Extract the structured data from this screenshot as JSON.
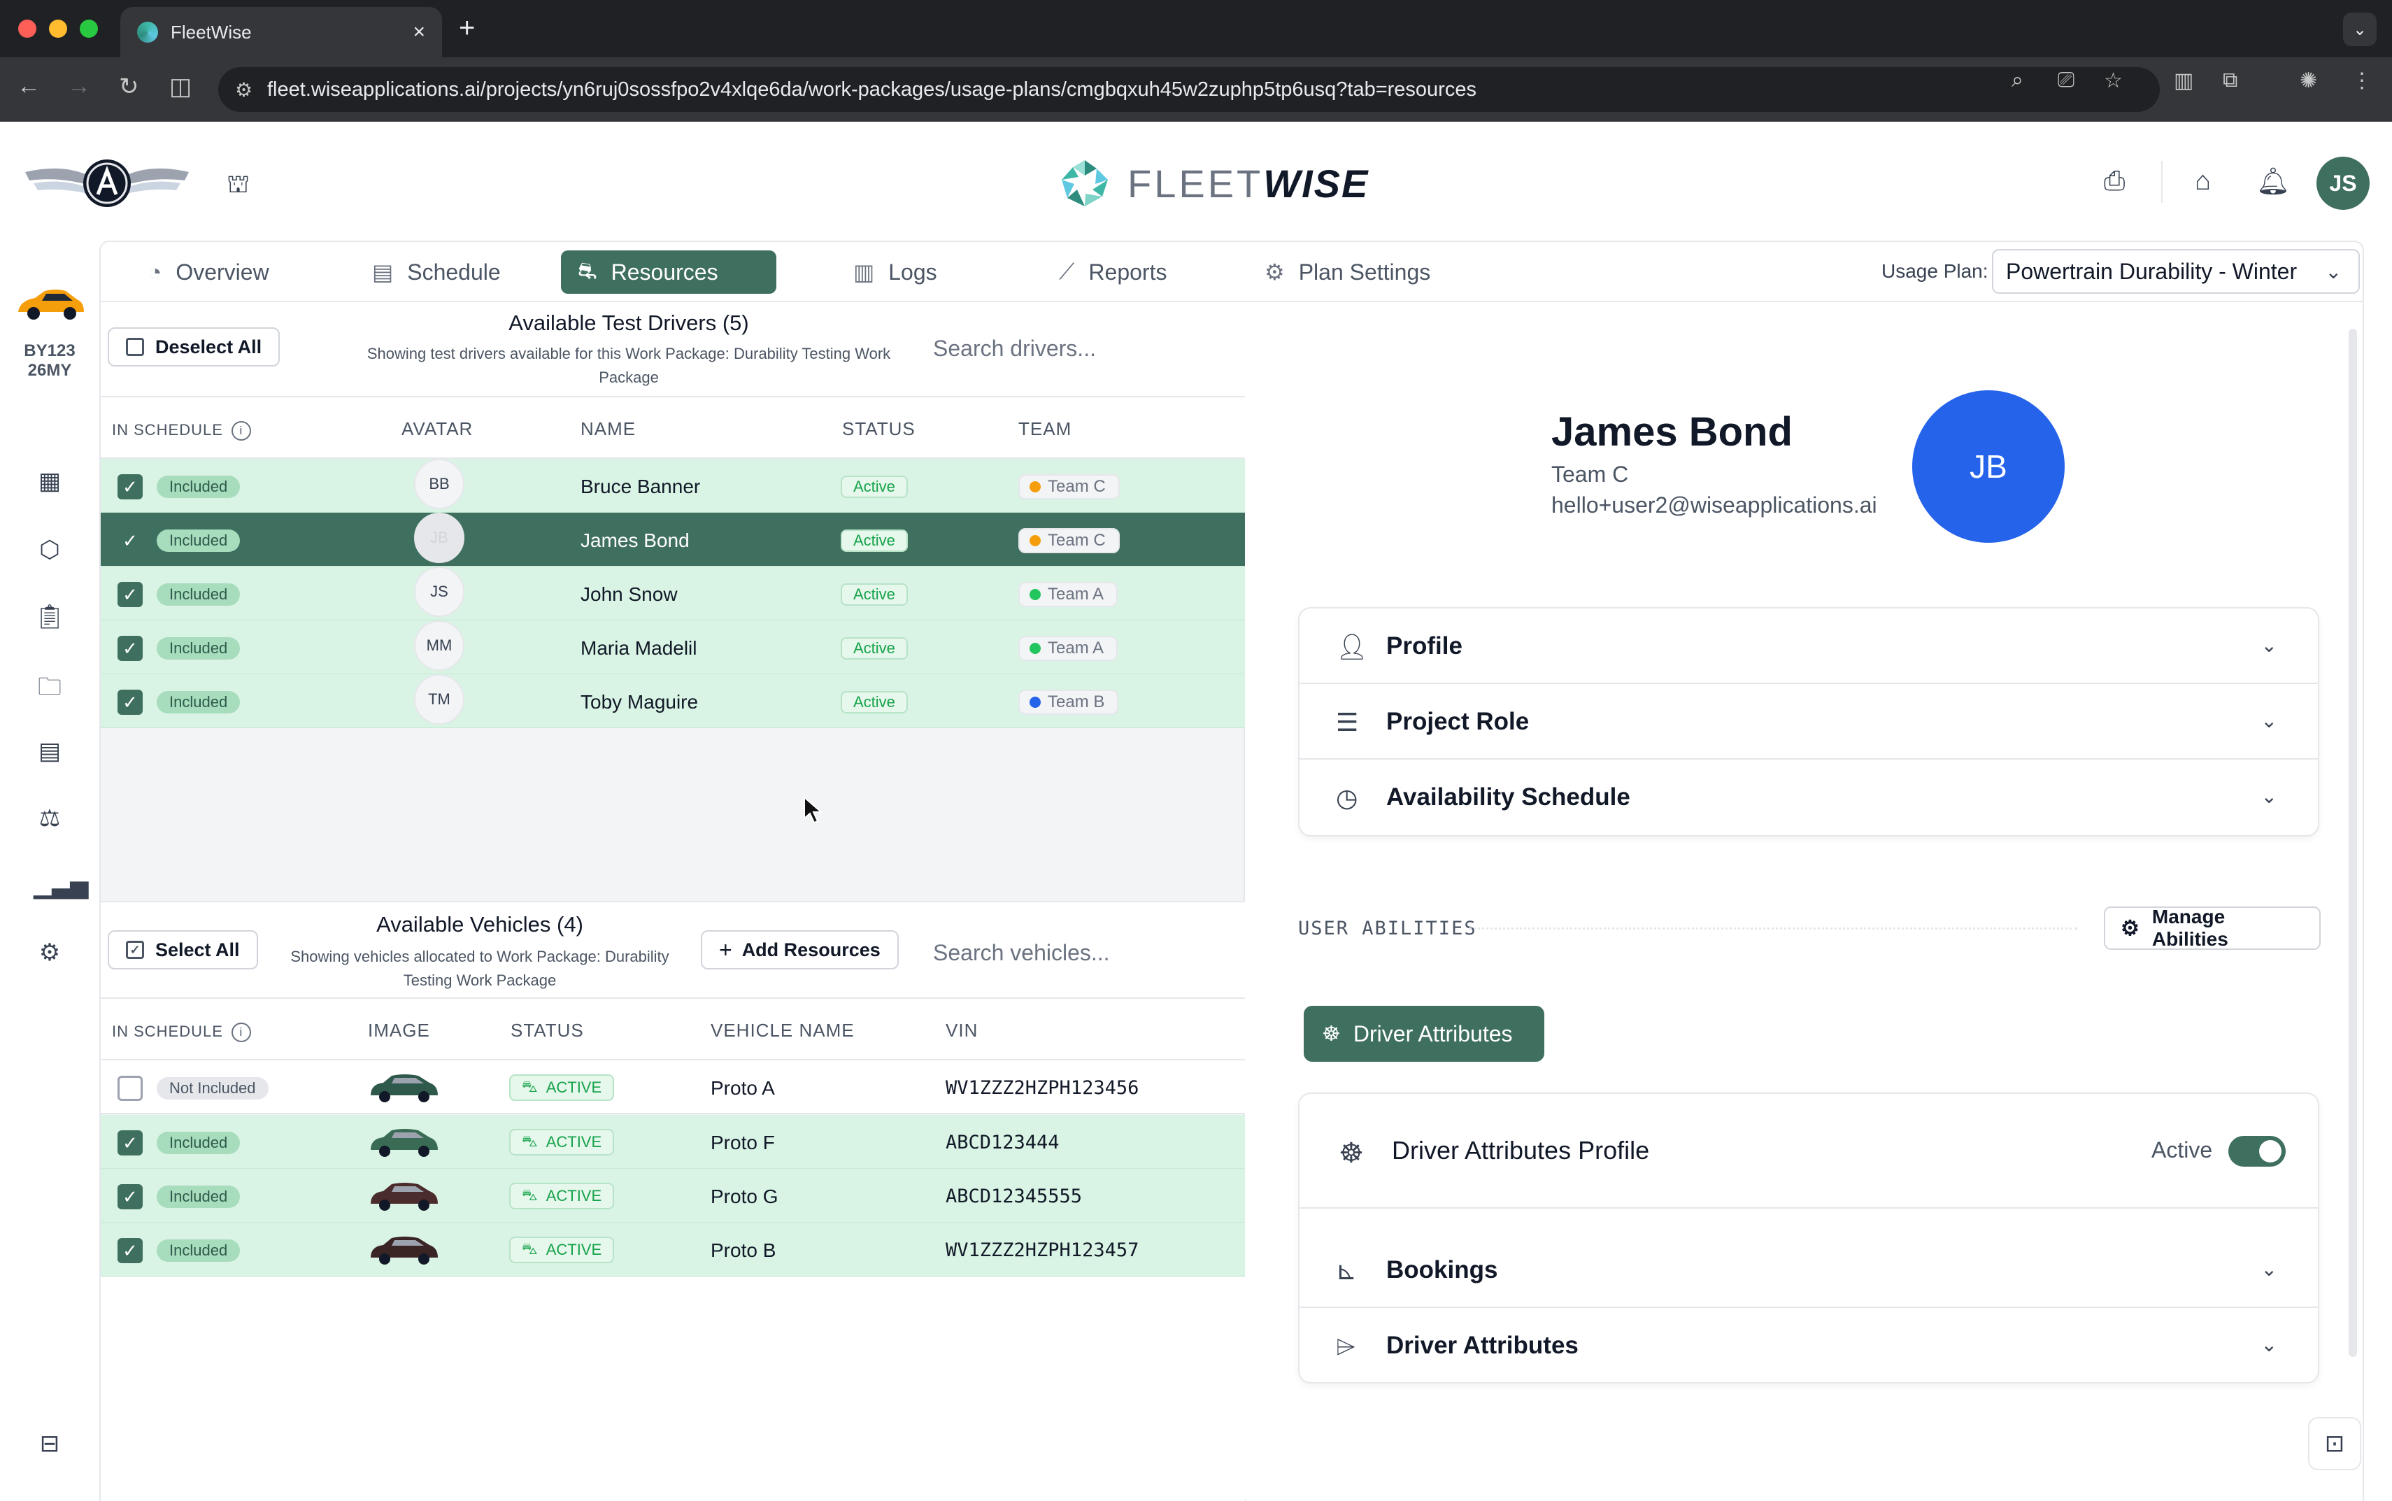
{
  "browser": {
    "tab_title": "FleetWise",
    "close_glyph": "×",
    "new_tab_glyph": "+",
    "url": "fleet.wiseapplications.ai/projects/yn6ruj0sossfpo2v4xlqe6da/work-packages/usage-plans/cmgbqxuh45w2zuphp5tp6usq?tab=resources"
  },
  "header": {
    "brand_light": "FLEET",
    "brand_bold": "WISE",
    "user_initials": "JS"
  },
  "rail": {
    "vehicle_id_line1": "BY123",
    "vehicle_id_line2": "26MY"
  },
  "tabs": [
    {
      "label": "Overview",
      "icon": "gauge-icon"
    },
    {
      "label": "Schedule",
      "icon": "calendar-icon"
    },
    {
      "label": "Resources",
      "icon": "motorbike-icon"
    },
    {
      "label": "Logs",
      "icon": "clipboard-icon"
    },
    {
      "label": "Reports",
      "icon": "line-chart-icon"
    },
    {
      "label": "Plan Settings",
      "icon": "gear-icon"
    }
  ],
  "usage_plan": {
    "label": "Usage Plan:",
    "value": "Powertrain Durability - Winter"
  },
  "drivers": {
    "deselect_label": "Deselect All",
    "title": "Available Test Drivers (5)",
    "subtitle_line1": "Showing test drivers available for this Work Package: Durability Testing Work",
    "subtitle_line2": "Package",
    "search_placeholder": "Search drivers...",
    "columns": [
      "IN SCHEDULE",
      "AVATAR",
      "NAME",
      "STATUS",
      "TEAM"
    ],
    "rows": [
      {
        "schedule": "Included",
        "initials": "BB",
        "name": "Bruce Banner",
        "status": "Active",
        "team": "Team C",
        "team_color": "#f59e0b"
      },
      {
        "schedule": "Included",
        "initials": "JB",
        "name": "James Bond",
        "status": "Active",
        "team": "Team C",
        "team_color": "#f59e0b"
      },
      {
        "schedule": "Included",
        "initials": "JS",
        "name": "John Snow",
        "status": "Active",
        "team": "Team A",
        "team_color": "#22c55e"
      },
      {
        "schedule": "Included",
        "initials": "MM",
        "name": "Maria Madelil",
        "status": "Active",
        "team": "Team A",
        "team_color": "#22c55e"
      },
      {
        "schedule": "Included",
        "initials": "TM",
        "name": "Toby Maguire",
        "status": "Active",
        "team": "Team B",
        "team_color": "#2563eb"
      }
    ]
  },
  "vehicles": {
    "select_all_label": "Select All",
    "title": "Available Vehicles (4)",
    "subtitle_line1": "Showing vehicles allocated to Work Package: Durability",
    "subtitle_line2": "Testing Work Package",
    "add_resources_label": "Add Resources",
    "search_placeholder": "Search vehicles...",
    "columns": [
      "IN SCHEDULE",
      "IMAGE",
      "STATUS",
      "VEHICLE NAME",
      "VIN"
    ],
    "rows": [
      {
        "schedule": "Not Included",
        "status": "ACTIVE",
        "name": "Proto A",
        "vin": "WV1ZZZ2HZPH123456",
        "color": "#2f5a4b"
      },
      {
        "schedule": "Included",
        "status": "ACTIVE",
        "name": "Proto F",
        "vin": "ABCD123444",
        "color": "#3a6b55"
      },
      {
        "schedule": "Included",
        "status": "ACTIVE",
        "name": "Proto G",
        "vin": "ABCD12345555",
        "color": "#4a2c2c"
      },
      {
        "schedule": "Included",
        "status": "ACTIVE",
        "name": "Proto B",
        "vin": "WV1ZZZ2HZPH123457",
        "color": "#3b2424"
      }
    ]
  },
  "profile": {
    "name": "James Bond",
    "team": "Team C",
    "email": "hello+user2@wiseapplications.ai",
    "initials": "JB",
    "avatar_color": "#2563eb"
  },
  "sections": [
    {
      "label": "Profile",
      "icon": "user-icon"
    },
    {
      "label": "Project Role",
      "icon": "user-list-icon"
    },
    {
      "label": "Availability Schedule",
      "icon": "clock-icon"
    }
  ],
  "abilities": {
    "label": "USER ABILITIES",
    "manage_label": "Manage Abilities",
    "driver_attributes_button": "Driver Attributes"
  },
  "driver_profile": {
    "title": "Driver Attributes Profile",
    "state": "Active",
    "rows": [
      {
        "label": "Bookings",
        "icon": "bar-chart-icon"
      },
      {
        "label": "Driver Attributes",
        "icon": "tag-icon"
      }
    ]
  },
  "theme": {
    "accent": "#3f6f5f",
    "included_row": "#d9f4e4"
  }
}
